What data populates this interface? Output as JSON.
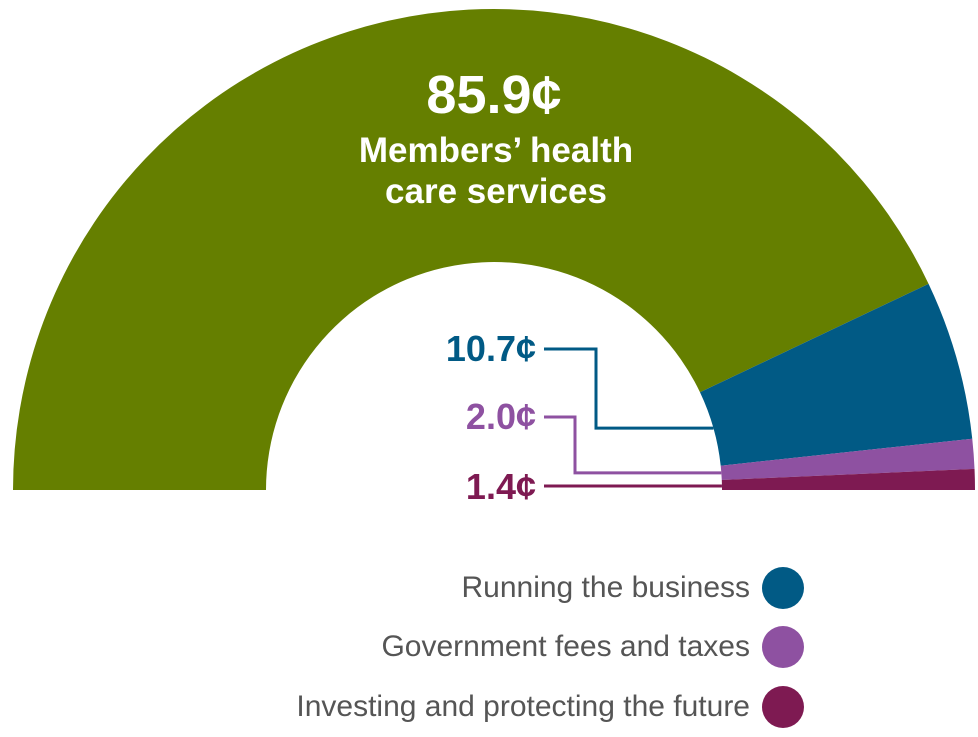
{
  "chart_data": {
    "type": "pie",
    "variant": "half-donut",
    "slices": [
      {
        "label": "Members’ health care services",
        "value": 85.9,
        "value_label": "85.9¢",
        "color": "#657f00"
      },
      {
        "label": "Running the business",
        "value": 10.7,
        "value_label": "10.7¢",
        "color": "#015a85"
      },
      {
        "label": "Government fees and taxes",
        "value": 2.0,
        "value_label": "2.0¢",
        "color": "#8e51a1"
      },
      {
        "label": "Investing and protecting the future",
        "value": 1.4,
        "value_label": "1.4¢",
        "color": "#7e1a52"
      }
    ],
    "main_label": {
      "value": "85.9¢",
      "line1": "Members’ health",
      "line2": "care services"
    },
    "legend": {
      "placement": "bottom-right",
      "items": [
        {
          "label": "Running the business",
          "color": "#015a85"
        },
        {
          "label": "Government fees and taxes",
          "color": "#8e51a1"
        },
        {
          "label": "Investing and protecting the future",
          "color": "#7e1a52"
        }
      ]
    }
  }
}
